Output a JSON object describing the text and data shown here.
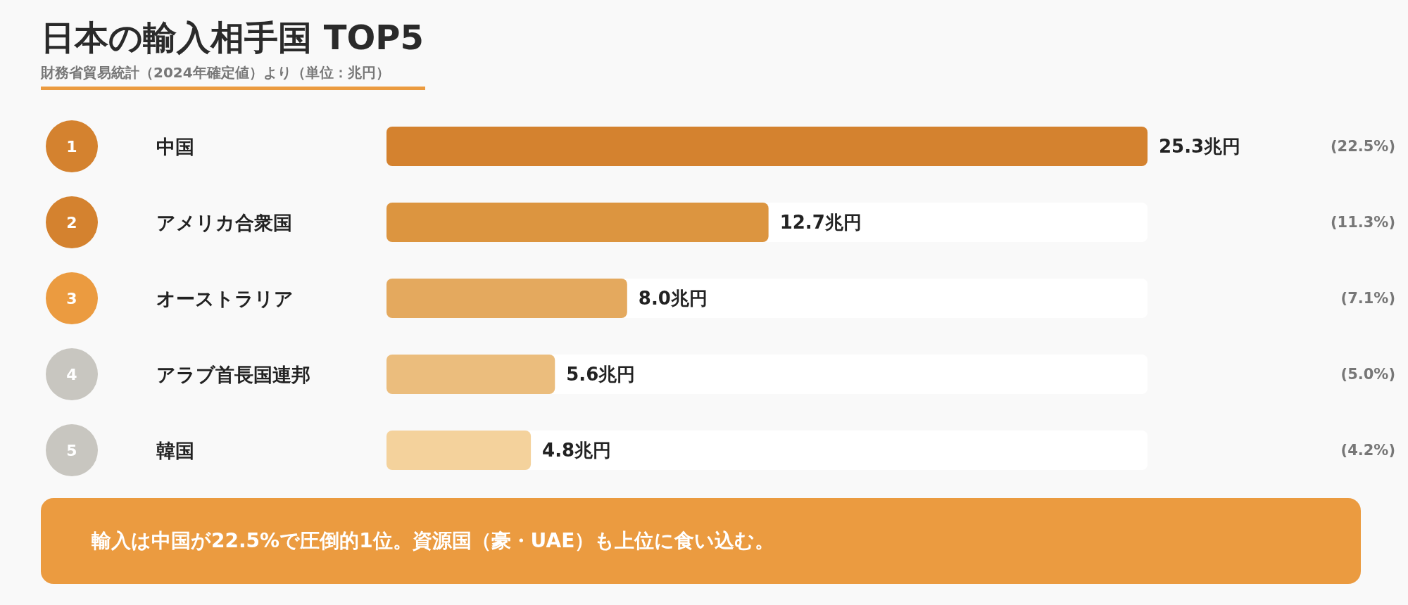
{
  "chart_data": {
    "type": "bar",
    "orientation": "horizontal",
    "tick_labels": "y",
    "title": "日本の輸入相手国 TOP5",
    "subtitle": "財務省貿易統計（2024年確定値）より（単位：兆円）",
    "categories": [
      "中国",
      "アメリカ合衆国",
      "オーストラリア",
      "アラブ首長国連邦",
      "韓国"
    ],
    "values": [
      25.3,
      12.7,
      8.0,
      5.6,
      4.8
    ],
    "colors": [
      "#d4822f",
      "#dc9540",
      "#e4a95e",
      "#ebbd7d",
      "#f4d29c"
    ],
    "value_labels": [
      "25.3兆円",
      "12.7兆円",
      "8.0兆円",
      "5.6兆円",
      "4.8兆円"
    ],
    "annotations": [
      "1",
      "2",
      "3",
      "4",
      "5",
      "(22.5%)",
      "(11.3%)",
      "(7.1%)",
      "(5.0%)",
      "(4.2%)",
      "輸入は中国が22.5%で圧倒的1位。資源国（豪・UAE）も上位に食い込む。"
    ]
  }
}
